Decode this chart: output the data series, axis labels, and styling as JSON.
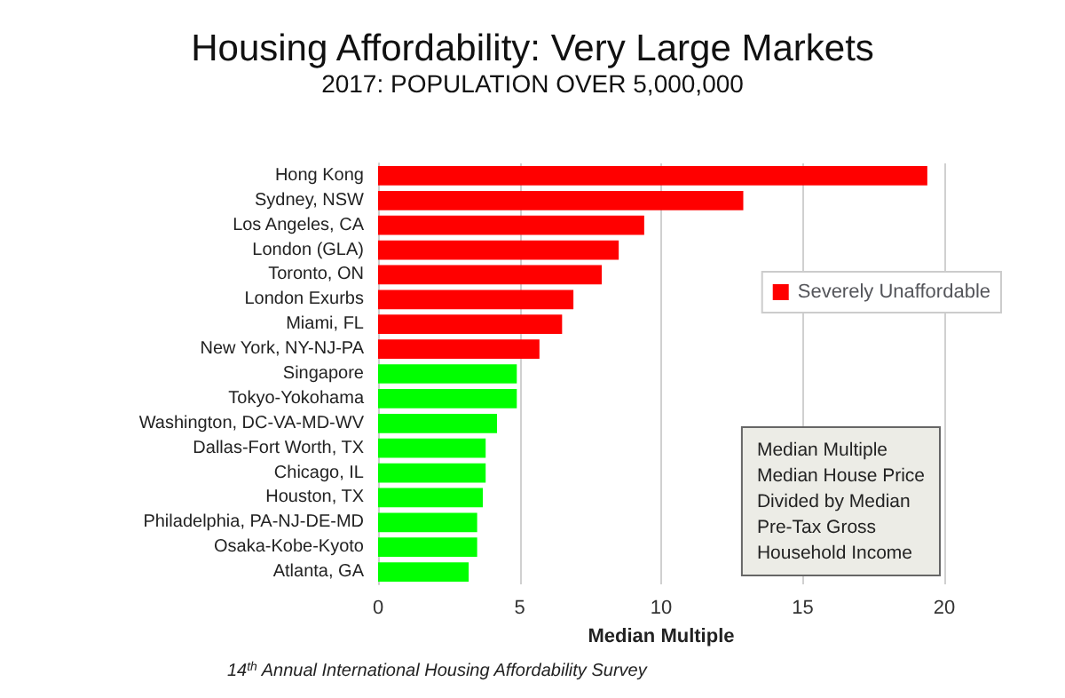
{
  "chart_data": {
    "type": "bar",
    "orientation": "horizontal",
    "title": "Housing Affordability: Very Large Markets",
    "subtitle": "2017: POPULATION OVER 5,000,000",
    "xlabel": "Median Multiple",
    "categories": [
      "Hong Kong",
      "Sydney, NSW",
      "Los Angeles, CA",
      "London (GLA)",
      "Toronto, ON",
      "London Exurbs",
      "Miami, FL",
      "New York, NY-NJ-PA",
      "Singapore",
      "Tokyo-Yokohama",
      "Washington, DC-VA-MD-WV",
      "Dallas-Fort Worth, TX",
      "Chicago, IL",
      "Houston, TX",
      "Philadelphia, PA-NJ-DE-MD",
      "Osaka-Kobe-Kyoto",
      "Atlanta, GA"
    ],
    "series": [
      {
        "name": "Severely Unaffordable",
        "color": "#ff0000",
        "values": [
          19.4,
          12.9,
          9.4,
          8.5,
          7.9,
          6.9,
          6.5,
          5.7,
          null,
          null,
          null,
          null,
          null,
          null,
          null,
          null,
          null
        ]
      },
      {
        "color": "#00ff00",
        "values": [
          null,
          null,
          null,
          null,
          null,
          null,
          null,
          null,
          4.9,
          4.9,
          4.2,
          3.8,
          3.8,
          3.7,
          3.5,
          3.5,
          3.2
        ]
      }
    ],
    "xlim": [
      0,
      20
    ],
    "xticks": [
      0,
      5,
      10,
      15,
      20
    ],
    "grid": "x",
    "legend": "right",
    "annotations": [
      "Median Multiple\nMedian House Price\nDivided by Median\nPre-Tax Gross\nHousehold Income",
      "14$^{th}$ Annual International Housing Affordability Survey"
    ]
  }
}
